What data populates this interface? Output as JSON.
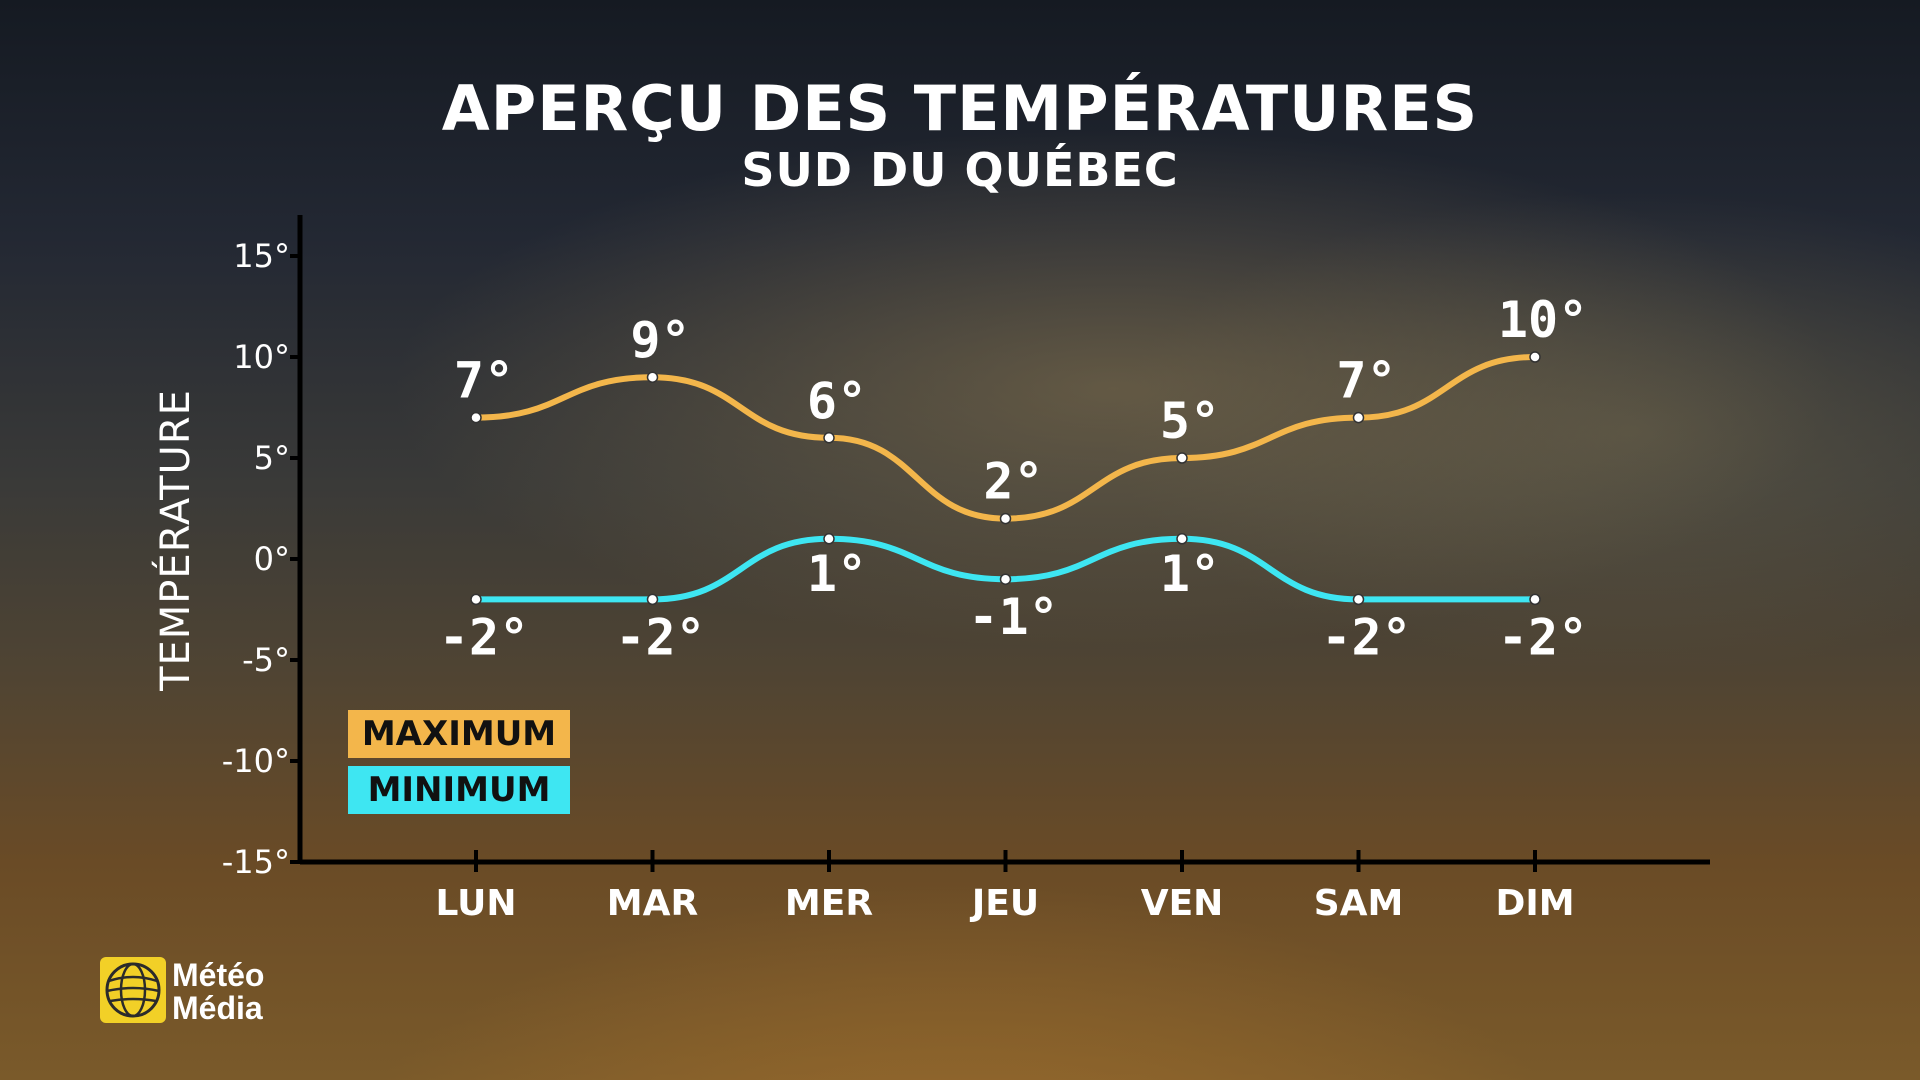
{
  "chart_data": {
    "type": "line",
    "title": "APERÇU DES TEMPÉRATURES",
    "subtitle": "SUD DU QUÉBEC",
    "ylabel": "TEMPÉRATURE",
    "xlabel": "",
    "categories": [
      "LUN",
      "MAR",
      "MER",
      "JEU",
      "VEN",
      "SAM",
      "DIM"
    ],
    "yticks": [
      "15°",
      "10°",
      "5°",
      "0°",
      "-5°",
      "-10°",
      "-15°"
    ],
    "ylim": [
      -15,
      15
    ],
    "grid": false,
    "legend_position": "bottom-left",
    "series": [
      {
        "name": "MAXIMUM",
        "color": "#f3b64b",
        "values": [
          7,
          9,
          6,
          2,
          5,
          7,
          10
        ],
        "labels": [
          "7°",
          "9°",
          "6°",
          "2°",
          "5°",
          "7°",
          "10°"
        ]
      },
      {
        "name": "MINIMUM",
        "color": "#3ee6f2",
        "values": [
          -2,
          -2,
          1,
          -1,
          1,
          -2,
          -2
        ],
        "labels": [
          "-2°",
          "-2°",
          "1°",
          "-1°",
          "1°",
          "-2°",
          "-2°"
        ]
      }
    ]
  },
  "logo": {
    "line1": "Météo",
    "line2": "Média",
    "color": "#f2d027"
  }
}
